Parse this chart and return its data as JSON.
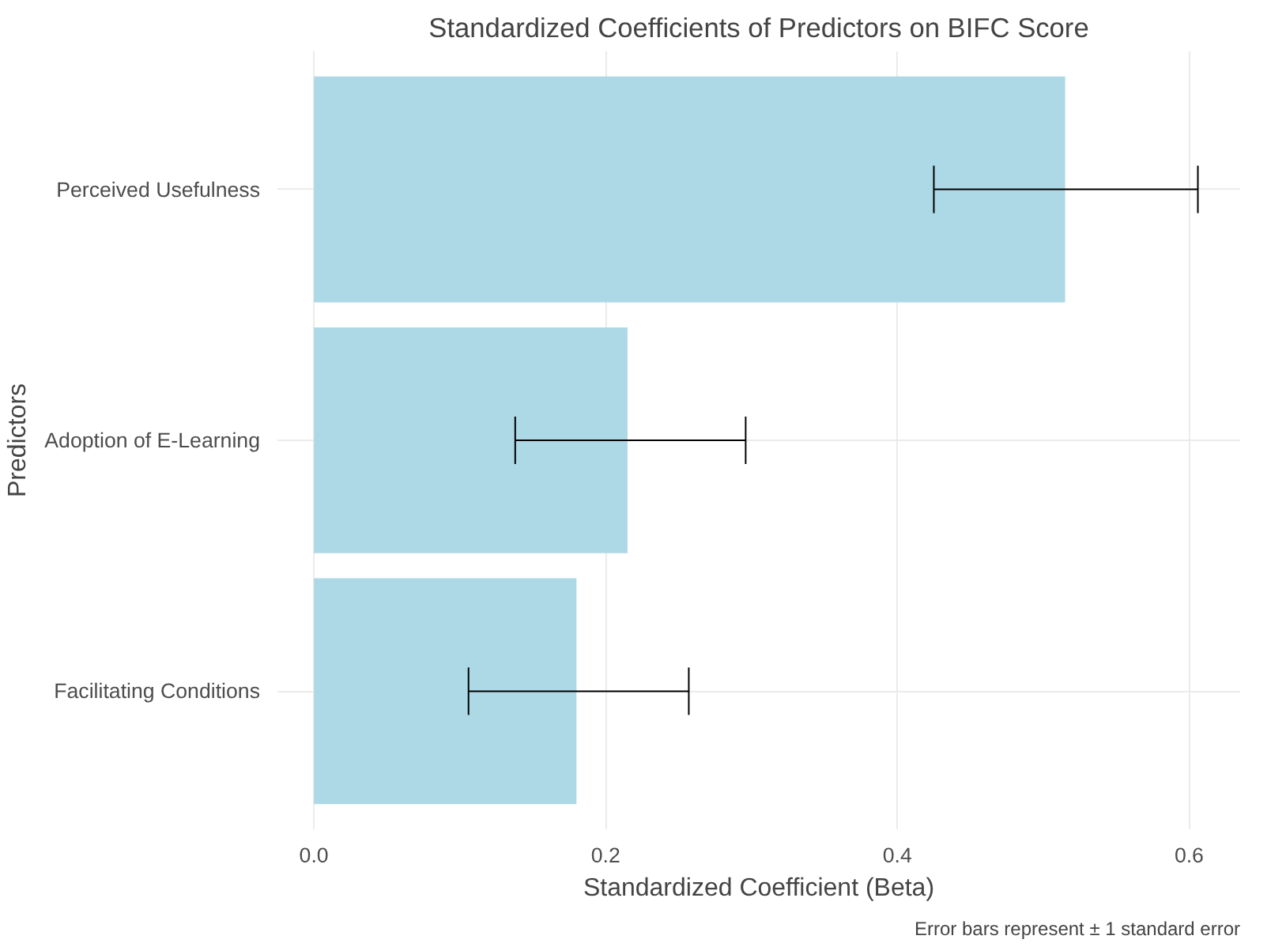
{
  "chart_data": {
    "type": "bar",
    "orientation": "horizontal",
    "title": "Standardized Coefficients of Predictors on BIFC Score",
    "xlabel": "Standardized Coefficient (Beta)",
    "ylabel": "Predictors",
    "categories": [
      "Perceived Usefulness",
      "Adoption of E-Learning",
      "Facilitating Conditions"
    ],
    "values": [
      0.515,
      0.215,
      0.18
    ],
    "errors": [
      [
        0.425,
        0.606
      ],
      [
        0.138,
        0.296
      ],
      [
        0.106,
        0.257
      ]
    ],
    "color": "#add8e6",
    "xlim": [
      -0.025,
      0.635
    ],
    "xticks": [
      {
        "value": 0,
        "label": "0.0"
      },
      0.2,
      0.4,
      0.6
    ],
    "grid": true,
    "annotations": [
      "Error bars represent ± 1 standard error"
    ]
  }
}
